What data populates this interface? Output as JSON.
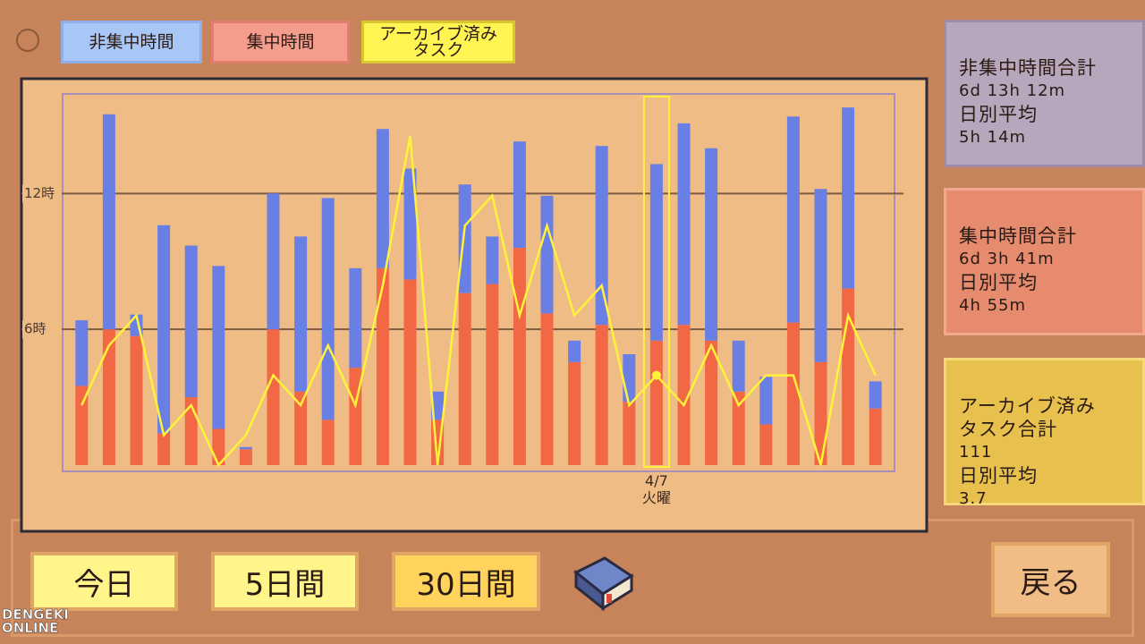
{
  "legend": [
    "非集中時間",
    "集中時間",
    "アーカイブ済み\nタスク"
  ],
  "chart_data": {
    "type": "bar",
    "stacked": true,
    "categories": [
      null,
      null,
      null,
      null,
      null,
      null,
      null,
      null,
      null,
      null,
      null,
      null,
      null,
      null,
      null,
      null,
      null,
      null,
      null,
      null,
      null,
      "4/7\n火曜",
      null,
      null,
      null,
      null,
      null,
      null,
      null,
      null
    ],
    "series": [
      {
        "name": "非集中時間",
        "color": "#6a7fe4",
        "values": [
          2.9,
          9.5,
          0.95,
          9.2,
          6.7,
          7.2,
          0.1,
          6.0,
          6.85,
          9.8,
          4.4,
          6.15,
          4.9,
          1.25,
          4.8,
          2.1,
          4.7,
          5.2,
          0.95,
          7.9,
          2.1,
          7.8,
          8.9,
          8.5,
          2.25,
          2.1,
          9.1,
          7.65,
          8.0,
          1.2
        ]
      },
      {
        "name": "集中時間",
        "color": "#f26845",
        "values": [
          3.5,
          6.0,
          5.7,
          1.4,
          3.0,
          1.6,
          0.7,
          6.0,
          3.25,
          2.0,
          4.3,
          8.7,
          8.2,
          2.0,
          7.6,
          8.0,
          9.6,
          6.7,
          4.55,
          6.2,
          2.8,
          5.5,
          6.2,
          5.5,
          3.25,
          1.8,
          6.3,
          4.55,
          7.8,
          2.5
        ]
      },
      {
        "name": "アーカイブ済み\nタスク",
        "type": "line",
        "axis": "y2",
        "color": "#fff23a",
        "values": [
          2,
          4,
          5,
          1,
          2,
          0,
          1,
          3,
          2,
          4,
          2,
          6,
          11,
          0,
          8,
          9,
          5,
          8,
          5,
          6,
          2,
          3,
          2,
          4,
          2,
          3,
          3,
          0,
          5,
          3
        ]
      }
    ],
    "ylim": [
      0,
      16.4
    ],
    "yticks": [
      {
        "value": 6,
        "label": "6時"
      },
      {
        "value": 12,
        "label": "12時"
      }
    ],
    "y2lim": [
      0,
      12.4
    ],
    "grid": true
  },
  "panels": [
    {
      "title": "非集中時間合計",
      "total": "6d 13h 12m",
      "avg_label": "日別平均",
      "avg": "5h 14m"
    },
    {
      "title": "集中時間合計",
      "total": "6d 3h 41m",
      "avg_label": "日別平均",
      "avg": "4h 55m"
    },
    {
      "title": "アーカイブ済み\nタスク合計",
      "total": "111",
      "avg_label": "日別平均",
      "avg": "3.7"
    }
  ],
  "buttons": [
    "今日",
    "5日間",
    "30日間"
  ],
  "back": "戻る",
  "watermark": "DENGEKI\nONLINE"
}
